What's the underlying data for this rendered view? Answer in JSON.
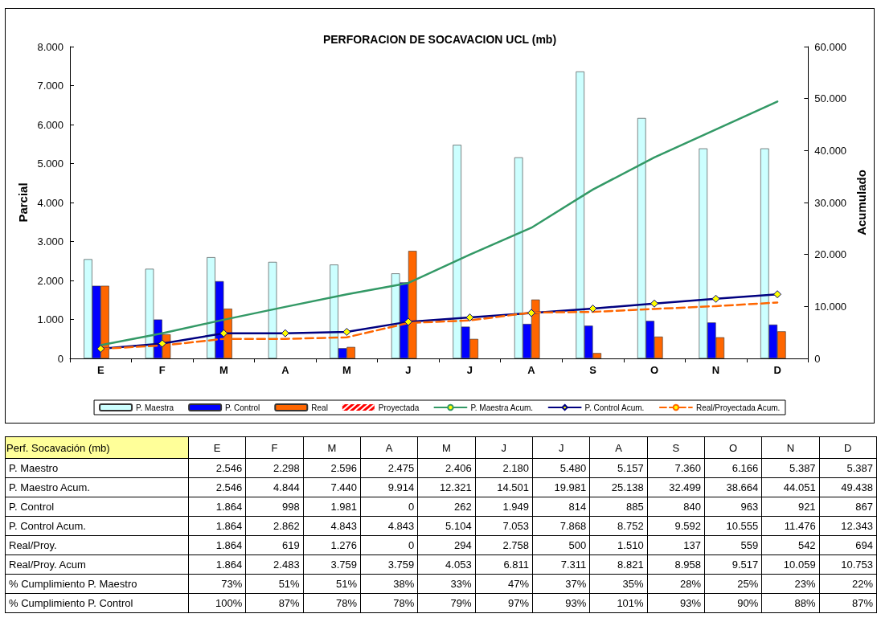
{
  "chart_data": [
    {
      "type": "bar",
      "title": "PERFORACION DE SOCAVACION UCL (mb)",
      "ylabel": "Parcial",
      "y2label": "Acumulado",
      "categories": [
        "E",
        "F",
        "M",
        "A",
        "M",
        "J",
        "J",
        "A",
        "S",
        "O",
        "N",
        "D"
      ],
      "series": [
        {
          "name": "P. Maestra",
          "color": "#ccffff",
          "values": [
            2546,
            2298,
            2596,
            2475,
            2406,
            2180,
            5480,
            5157,
            7360,
            6166,
            5387,
            5387
          ]
        },
        {
          "name": "P. Control",
          "color": "#0000ff",
          "values": [
            1864,
            998,
            1981,
            0,
            262,
            1949,
            814,
            885,
            840,
            963,
            921,
            867
          ]
        },
        {
          "name": "Real",
          "color": "#ff6600",
          "values": [
            1864,
            619,
            1276,
            0,
            294,
            2758,
            500,
            1510,
            137,
            559,
            542,
            694
          ]
        },
        {
          "name": "Proyectada",
          "color": "#ff0000",
          "values": [
            null,
            null,
            null,
            null,
            null,
            null,
            null,
            null,
            null,
            null,
            null,
            null
          ]
        },
        {
          "name": "P. Maestra Acum.",
          "type": "line",
          "axis": "y2",
          "color": "#339966",
          "marker": "none",
          "line_style": "solid",
          "values": [
            2546,
            4844,
            7440,
            9914,
            12321,
            14501,
            19981,
            25138,
            32499,
            38664,
            44051,
            49438
          ]
        },
        {
          "name": "P. Control Acum.",
          "type": "line",
          "axis": "y2",
          "color": "#000080",
          "marker": "diamond",
          "line_style": "solid",
          "values": [
            1864,
            2862,
            4843,
            4843,
            5104,
            7053,
            7868,
            8752,
            9592,
            10555,
            11476,
            12343
          ]
        },
        {
          "name": "Real/Proyectada Acum.",
          "type": "line",
          "axis": "y2",
          "color": "#ff6600",
          "marker": "none",
          "line_style": "dashed",
          "values": [
            1864,
            2483,
            3759,
            3759,
            4053,
            6811,
            7311,
            8821,
            8958,
            9517,
            10059,
            10753
          ]
        }
      ],
      "ylim": [
        0,
        8000
      ],
      "yticks": [
        {
          "value": 0,
          "label": "0"
        },
        {
          "value": 1000,
          "label": "1.000"
        },
        {
          "value": 2000,
          "label": "2.000"
        },
        {
          "value": 3000,
          "label": "3.000"
        },
        {
          "value": 4000,
          "label": "4.000"
        },
        {
          "value": 5000,
          "label": "5.000"
        },
        {
          "value": 6000,
          "label": "6.000"
        },
        {
          "value": 7000,
          "label": "7.000"
        },
        {
          "value": 8000,
          "label": "8.000"
        }
      ],
      "y2lim": [
        0,
        60000
      ],
      "y2ticks": [
        {
          "value": 0,
          "label": "0"
        },
        {
          "value": 10000,
          "label": "10.000"
        },
        {
          "value": 20000,
          "label": "20.000"
        },
        {
          "value": 30000,
          "label": "30.000"
        },
        {
          "value": 40000,
          "label": "40.000"
        },
        {
          "value": 50000,
          "label": "50.000"
        },
        {
          "value": 60000,
          "label": "60.000"
        }
      ],
      "grid": false,
      "legend": "bottom"
    },
    {
      "type": "other",
      "title": "Perf. Socavación (mb)",
      "categories": [
        "E",
        "F",
        "M",
        "A",
        "M",
        "J",
        "J",
        "A",
        "S",
        "O",
        "N",
        "D"
      ],
      "series": [
        {
          "name": "P. Maestro",
          "values": [
            2546,
            2298,
            2596,
            2475,
            2406,
            2180,
            5480,
            5157,
            7360,
            6166,
            5387,
            5387
          ],
          "value_labels": [
            "2.546",
            "2.298",
            "2.596",
            "2.475",
            "2.406",
            "2.180",
            "5.480",
            "5.157",
            "7.360",
            "6.166",
            "5.387",
            "5.387"
          ]
        },
        {
          "name": "P. Maestro Acum.",
          "values": [
            2546,
            4844,
            7440,
            9914,
            12321,
            14501,
            19981,
            25138,
            32499,
            38664,
            44051,
            49438
          ],
          "value_labels": [
            "2.546",
            "4.844",
            "7.440",
            "9.914",
            "12.321",
            "14.501",
            "19.981",
            "25.138",
            "32.499",
            "38.664",
            "44.051",
            "49.438"
          ]
        },
        {
          "name": "P. Control",
          "values": [
            1864,
            998,
            1981,
            0,
            262,
            1949,
            814,
            885,
            840,
            963,
            921,
            867
          ],
          "value_labels": [
            "1.864",
            "998",
            "1.981",
            "0",
            "262",
            "1.949",
            "814",
            "885",
            "840",
            "963",
            "921",
            "867"
          ]
        },
        {
          "name": "P. Control Acum.",
          "values": [
            1864,
            2862,
            4843,
            4843,
            5104,
            7053,
            7868,
            8752,
            9592,
            10555,
            11476,
            12343
          ],
          "value_labels": [
            "1.864",
            "2.862",
            "4.843",
            "4.843",
            "5.104",
            "7.053",
            "7.868",
            "8.752",
            "9.592",
            "10.555",
            "11.476",
            "12.343"
          ]
        },
        {
          "name": "Real/Proy.",
          "values": [
            1864,
            619,
            1276,
            0,
            294,
            2758,
            500,
            1510,
            137,
            559,
            542,
            694
          ],
          "value_labels": [
            "1.864",
            "619",
            "1.276",
            "0",
            "294",
            "2.758",
            "500",
            "1.510",
            "137",
            "559",
            "542",
            "694"
          ]
        },
        {
          "name": "Real/Proy. Acum",
          "values": [
            1864,
            2483,
            3759,
            3759,
            4053,
            6811,
            7311,
            8821,
            8958,
            9517,
            10059,
            10753
          ],
          "value_labels": [
            "1.864",
            "2.483",
            "3.759",
            "3.759",
            "4.053",
            "6.811",
            "7.311",
            "8.821",
            "8.958",
            "9.517",
            "10.059",
            "10.753"
          ]
        },
        {
          "name": "% Cumplimiento P. Maestro",
          "values": [
            73,
            51,
            51,
            38,
            33,
            47,
            37,
            35,
            28,
            25,
            23,
            22
          ],
          "value_labels": [
            "73%",
            "51%",
            "51%",
            "38%",
            "33%",
            "47%",
            "37%",
            "35%",
            "28%",
            "25%",
            "23%",
            "22%"
          ]
        },
        {
          "name": "% Cumplimiento P. Control",
          "values": [
            100,
            87,
            78,
            78,
            79,
            97,
            93,
            101,
            93,
            90,
            88,
            87
          ],
          "value_labels": [
            "100%",
            "87%",
            "78%",
            "78%",
            "79%",
            "97%",
            "93%",
            "101%",
            "93%",
            "90%",
            "88%",
            "87%"
          ]
        }
      ]
    }
  ]
}
